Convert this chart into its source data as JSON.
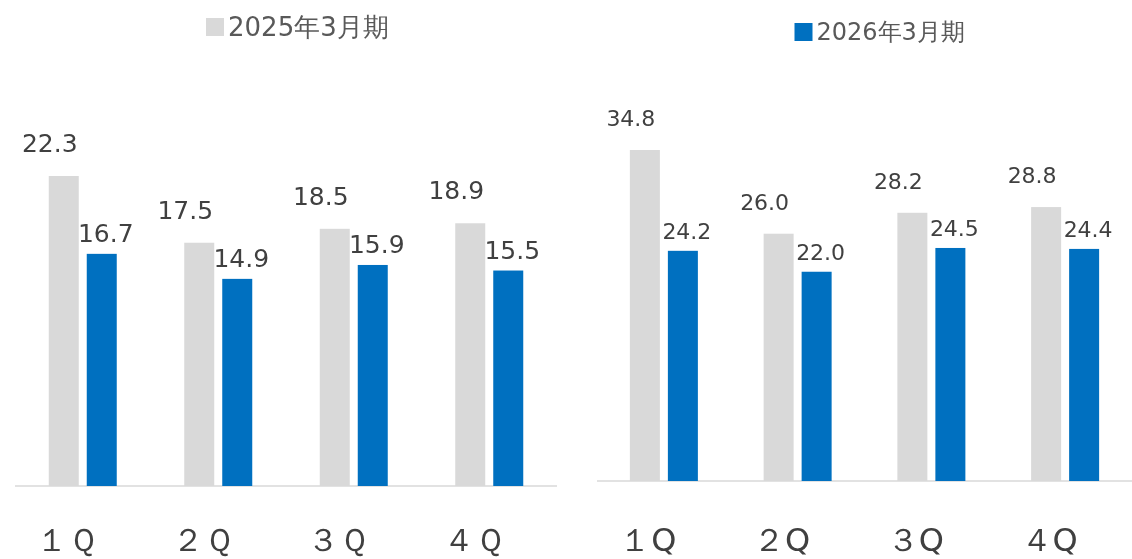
{
  "chart_data": [
    {
      "type": "bar",
      "categories": [
        "１Ｑ",
        "２Ｑ",
        "３Ｑ",
        "４Ｑ"
      ],
      "series": [
        {
          "name": "2025年3月期",
          "color": "#d9d9d9",
          "values": [
            22.3,
            17.5,
            18.5,
            18.9
          ],
          "value_labels": [
            "22.3",
            "17.5",
            "18.5",
            "18.9"
          ]
        },
        {
          "color": "#0070c0",
          "values": [
            16.7,
            14.9,
            15.9,
            15.5
          ],
          "value_labels": [
            "16.7",
            "14.9",
            "15.9",
            "15.5"
          ]
        }
      ],
      "legend": "top"
    },
    {
      "type": "bar",
      "categories": [
        "１Q",
        "２Q",
        "３Q",
        "４Q"
      ],
      "series": [
        {
          "color": "#d9d9d9",
          "values": [
            34.8,
            26.0,
            28.2,
            28.8
          ],
          "value_labels": [
            "34.8",
            "26.0",
            "28.2",
            "28.8"
          ]
        },
        {
          "name": "2026年3月期",
          "color": "#0070c0",
          "values": [
            24.2,
            22.0,
            24.5,
            24.4
          ],
          "value_labels": [
            "24.2",
            "22.0",
            "24.5",
            "24.4"
          ]
        }
      ],
      "legend": "top"
    }
  ]
}
